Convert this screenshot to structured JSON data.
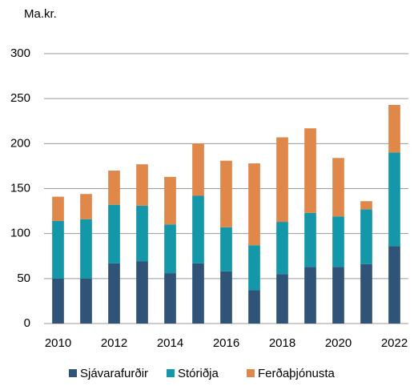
{
  "chart_data": {
    "type": "stacked_bar",
    "y_label": "Ma.kr.",
    "categories": [
      "2010",
      null,
      "2012",
      null,
      "2014",
      null,
      "2016",
      null,
      "2018",
      null,
      "2020",
      null,
      "2022"
    ],
    "series": [
      {
        "name": "Sjávarafurðir",
        "color": "#2f5477",
        "values": [
          50,
          50,
          67,
          69,
          56,
          67,
          58,
          37,
          55,
          63,
          63,
          66,
          86
        ]
      },
      {
        "name": "Stóriðja",
        "color": "#1497a8",
        "values": [
          64,
          66,
          65,
          62,
          54,
          75,
          49,
          50,
          58,
          60,
          56,
          61,
          104
        ]
      },
      {
        "name": "Ferðaþjónusta",
        "color": "#e0874a",
        "values": [
          27,
          28,
          38,
          46,
          53,
          58,
          74,
          91,
          94,
          94,
          65,
          9,
          53
        ]
      }
    ],
    "ylim": [
      0,
      300
    ],
    "yticks": [
      0,
      50,
      100,
      150,
      200,
      250,
      300
    ],
    "grid": true
  }
}
